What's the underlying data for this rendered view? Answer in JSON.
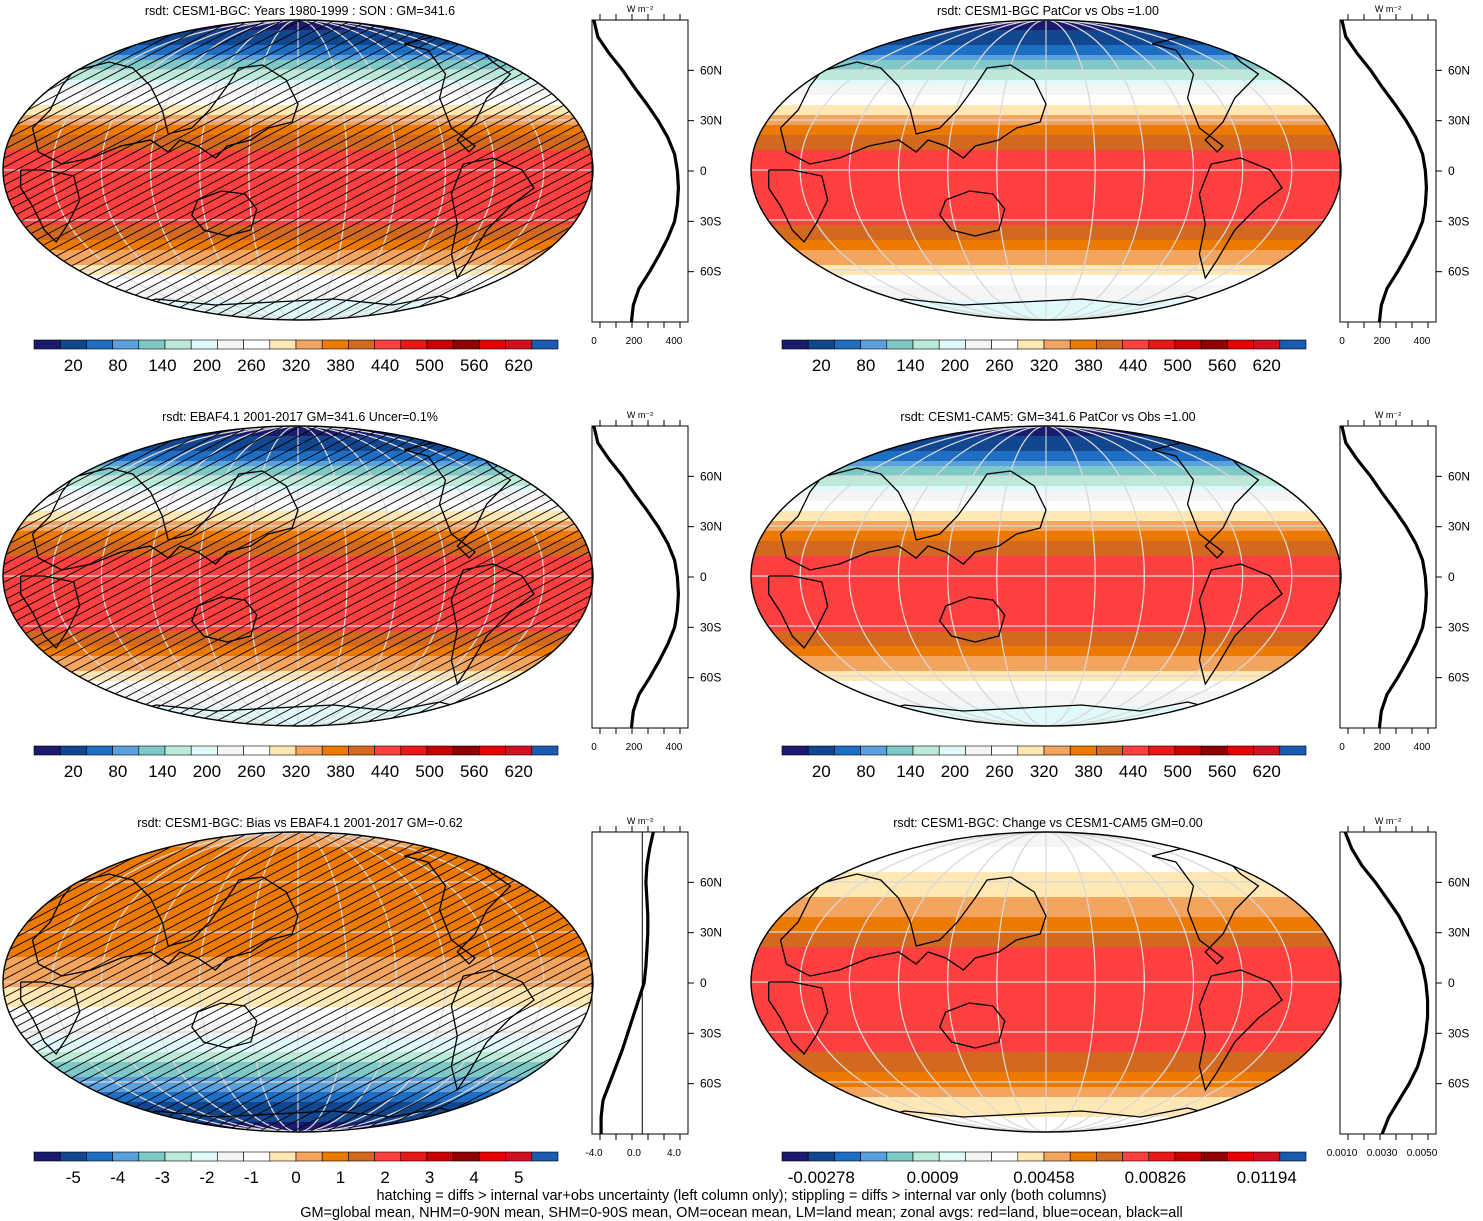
{
  "footer": {
    "line1": "hatching = diffs > internal var+obs uncertainty (left column only); stippling = diffs > internal var only (both columns)",
    "line2": "GM=global mean, NHM=0-90N mean, SHM=0-90S mean, OM=ocean mean, LM=land mean; zonal avgs: red=land, blue=ocean, black=all"
  },
  "colors": {
    "palette": [
      "#1a1a6e",
      "#12468f",
      "#1e6ec4",
      "#5aa0dc",
      "#7ec8c8",
      "#bcead8",
      "#e0fafa",
      "#f5f5f5",
      "#ffffff",
      "#ffe8b4",
      "#f3a45e",
      "#ec7a00",
      "#d2691e",
      "#ff4040",
      "#e81818",
      "#c80000",
      "#900000",
      "#e80000",
      "#d01020",
      "#1a5ab0"
    ],
    "hatch": "#000000",
    "coast": "#000000",
    "grid": "#d8d8d8"
  },
  "chart_data": [
    {
      "type": "heatmap",
      "title": "rsdt: CESM1-BGC: Years 1980-1999 : SON : GM=341.6",
      "lat": [
        -90,
        -80,
        -70,
        -60,
        -50,
        -40,
        -30,
        -20,
        -10,
        0,
        10,
        20,
        30,
        40,
        50,
        60,
        70,
        80,
        90
      ],
      "values": [
        200,
        215,
        250,
        300,
        350,
        395,
        430,
        445,
        450,
        445,
        430,
        395,
        345,
        285,
        220,
        160,
        90,
        30,
        10
      ],
      "colorbar_labels": [
        "20",
        "80",
        "140",
        "200",
        "260",
        "320",
        "380",
        "440",
        "500",
        "560",
        "620"
      ],
      "colorbar_range": [
        -10,
        650
      ],
      "hatching": true,
      "profile": {
        "xticks": [
          "0",
          "200",
          "400"
        ],
        "xlim": [
          0,
          500
        ],
        "unit": "W m⁻²",
        "lat_labels": [
          "60N",
          "30N",
          "0",
          "30S",
          "60S"
        ],
        "x": [
          205,
          215,
          245,
          300,
          350,
          395,
          430,
          445,
          450,
          445,
          430,
          395,
          345,
          285,
          220,
          160,
          90,
          30,
          10
        ]
      }
    },
    {
      "type": "heatmap",
      "title": "rsdt: CESM1-BGC PatCor vs Obs =1.00",
      "lat": [
        -90,
        -80,
        -70,
        -60,
        -50,
        -40,
        -30,
        -20,
        -10,
        0,
        10,
        20,
        30,
        40,
        50,
        60,
        70,
        80,
        90
      ],
      "values": [
        200,
        215,
        250,
        300,
        350,
        395,
        430,
        445,
        450,
        445,
        430,
        395,
        345,
        285,
        220,
        160,
        90,
        30,
        10
      ],
      "colorbar_labels": [
        "20",
        "80",
        "140",
        "200",
        "260",
        "320",
        "380",
        "440",
        "500",
        "560",
        "620"
      ],
      "colorbar_range": [
        -10,
        650
      ],
      "hatching": false,
      "profile": {
        "xticks": [
          "0",
          "200",
          "400"
        ],
        "xlim": [
          0,
          500
        ],
        "unit": "W m⁻²",
        "lat_labels": [
          "60N",
          "30N",
          "0",
          "30S",
          "60S"
        ],
        "x": [
          205,
          215,
          245,
          300,
          350,
          395,
          430,
          445,
          450,
          445,
          430,
          395,
          345,
          285,
          220,
          160,
          90,
          30,
          10
        ]
      }
    },
    {
      "type": "heatmap",
      "title": "rsdt: EBAF4.1 2001-2017 GM=341.6 Uncer=0.1%",
      "lat": [
        -90,
        -80,
        -70,
        -60,
        -50,
        -40,
        -30,
        -20,
        -10,
        0,
        10,
        20,
        30,
        40,
        50,
        60,
        70,
        80,
        90
      ],
      "values": [
        200,
        215,
        250,
        300,
        350,
        395,
        430,
        445,
        450,
        445,
        430,
        395,
        345,
        285,
        220,
        160,
        90,
        30,
        10
      ],
      "colorbar_labels": [
        "20",
        "80",
        "140",
        "200",
        "260",
        "320",
        "380",
        "440",
        "500",
        "560",
        "620"
      ],
      "colorbar_range": [
        -10,
        650
      ],
      "hatching": true,
      "profile": {
        "xticks": [
          "0",
          "200",
          "400"
        ],
        "xlim": [
          0,
          500
        ],
        "unit": "W m⁻²",
        "lat_labels": [
          "60N",
          "30N",
          "0",
          "30S",
          "60S"
        ],
        "x": [
          205,
          215,
          245,
          300,
          350,
          395,
          430,
          445,
          450,
          445,
          430,
          395,
          345,
          285,
          220,
          160,
          90,
          30,
          10
        ]
      }
    },
    {
      "type": "heatmap",
      "title": "rsdt: CESM1-CAM5: GM=341.6 PatCor vs Obs =1.00",
      "lat": [
        -90,
        -80,
        -70,
        -60,
        -50,
        -40,
        -30,
        -20,
        -10,
        0,
        10,
        20,
        30,
        40,
        50,
        60,
        70,
        80,
        90
      ],
      "values": [
        200,
        215,
        250,
        300,
        350,
        395,
        430,
        445,
        450,
        445,
        430,
        395,
        345,
        285,
        220,
        160,
        90,
        30,
        10
      ],
      "colorbar_labels": [
        "20",
        "80",
        "140",
        "200",
        "260",
        "320",
        "380",
        "440",
        "500",
        "560",
        "620"
      ],
      "colorbar_range": [
        -10,
        650
      ],
      "hatching": false,
      "profile": {
        "xticks": [
          "0",
          "200",
          "400"
        ],
        "xlim": [
          0,
          500
        ],
        "unit": "W m⁻²",
        "lat_labels": [
          "60N",
          "30N",
          "0",
          "30S",
          "60S"
        ],
        "x": [
          205,
          215,
          245,
          300,
          350,
          395,
          430,
          445,
          450,
          445,
          430,
          395,
          345,
          285,
          220,
          160,
          90,
          30,
          10
        ]
      }
    },
    {
      "type": "heatmap",
      "title": "rsdt: CESM1-BGC: Bias vs EBAF4.1 2001-2017  GM=-0.62",
      "lat": [
        -90,
        -80,
        -70,
        -60,
        -50,
        -40,
        -30,
        -20,
        -10,
        0,
        10,
        20,
        30,
        40,
        50,
        60,
        70,
        80,
        90
      ],
      "values": [
        -5.2,
        -4.8,
        -4.2,
        -3.5,
        -2.8,
        -2.1,
        -1.5,
        -0.9,
        -0.3,
        0.2,
        0.5,
        0.6,
        0.7,
        0.7,
        0.7,
        0.8,
        0.8,
        0.6,
        0.3
      ],
      "colorbar_labels": [
        "-5",
        "-4",
        "-3",
        "-2",
        "-1",
        "0",
        "1",
        "2",
        "3",
        "4",
        "5"
      ],
      "colorbar_range": [
        -5.5,
        5.5
      ],
      "hatching": true,
      "profile": {
        "xticks": [
          "-4.0",
          "0.0",
          "4.0"
        ],
        "xlim": [
          -5.5,
          5
        ],
        "unit": "W m⁻²",
        "lat_labels": [
          "60N",
          "30N",
          "0",
          "30S",
          "60S"
        ],
        "x": [
          -4.5,
          -4.5,
          -4.3,
          -3.6,
          -2.9,
          -2.2,
          -1.6,
          -1.0,
          -0.4,
          0.2,
          0.4,
          0.5,
          0.6,
          0.6,
          0.5,
          0.4,
          0.5,
          0.8,
          1.2
        ]
      }
    },
    {
      "type": "heatmap",
      "title": "rsdt: CESM1-BGC: Change vs CESM1-CAM5 GM=0.00",
      "lat": [
        -90,
        -80,
        -70,
        -60,
        -50,
        -40,
        -30,
        -20,
        -10,
        0,
        10,
        20,
        30,
        40,
        50,
        60,
        70,
        80,
        90
      ],
      "values": [
        0.003,
        0.0038,
        0.0046,
        0.0058,
        0.0068,
        0.0074,
        0.0078,
        0.008,
        0.008,
        0.008,
        0.0079,
        0.0074,
        0.0064,
        0.0054,
        0.0046,
        0.004,
        0.0034,
        0.0028,
        0.002
      ],
      "colorbar_labels": [
        "-0.00278",
        "0.0009",
        "0.00458",
        "0.00826",
        "0.01194"
      ],
      "colorbar_range": [
        -0.0046,
        0.0138
      ],
      "hatching": false,
      "profile": {
        "xticks": [
          "0.0010",
          "0.0030",
          "0.0050"
        ],
        "xlim": [
          0.0005,
          0.0062
        ],
        "unit": "W m⁻²",
        "lat_labels": [
          "60N",
          "30N",
          "0",
          "30S",
          "60S"
        ],
        "x": [
          0.003,
          0.0034,
          0.004,
          0.0046,
          0.0051,
          0.0054,
          0.0056,
          0.0057,
          0.0057,
          0.0056,
          0.0054,
          0.005,
          0.0045,
          0.004,
          0.0033,
          0.0026,
          0.0018,
          0.0012,
          0.0008
        ]
      }
    }
  ]
}
